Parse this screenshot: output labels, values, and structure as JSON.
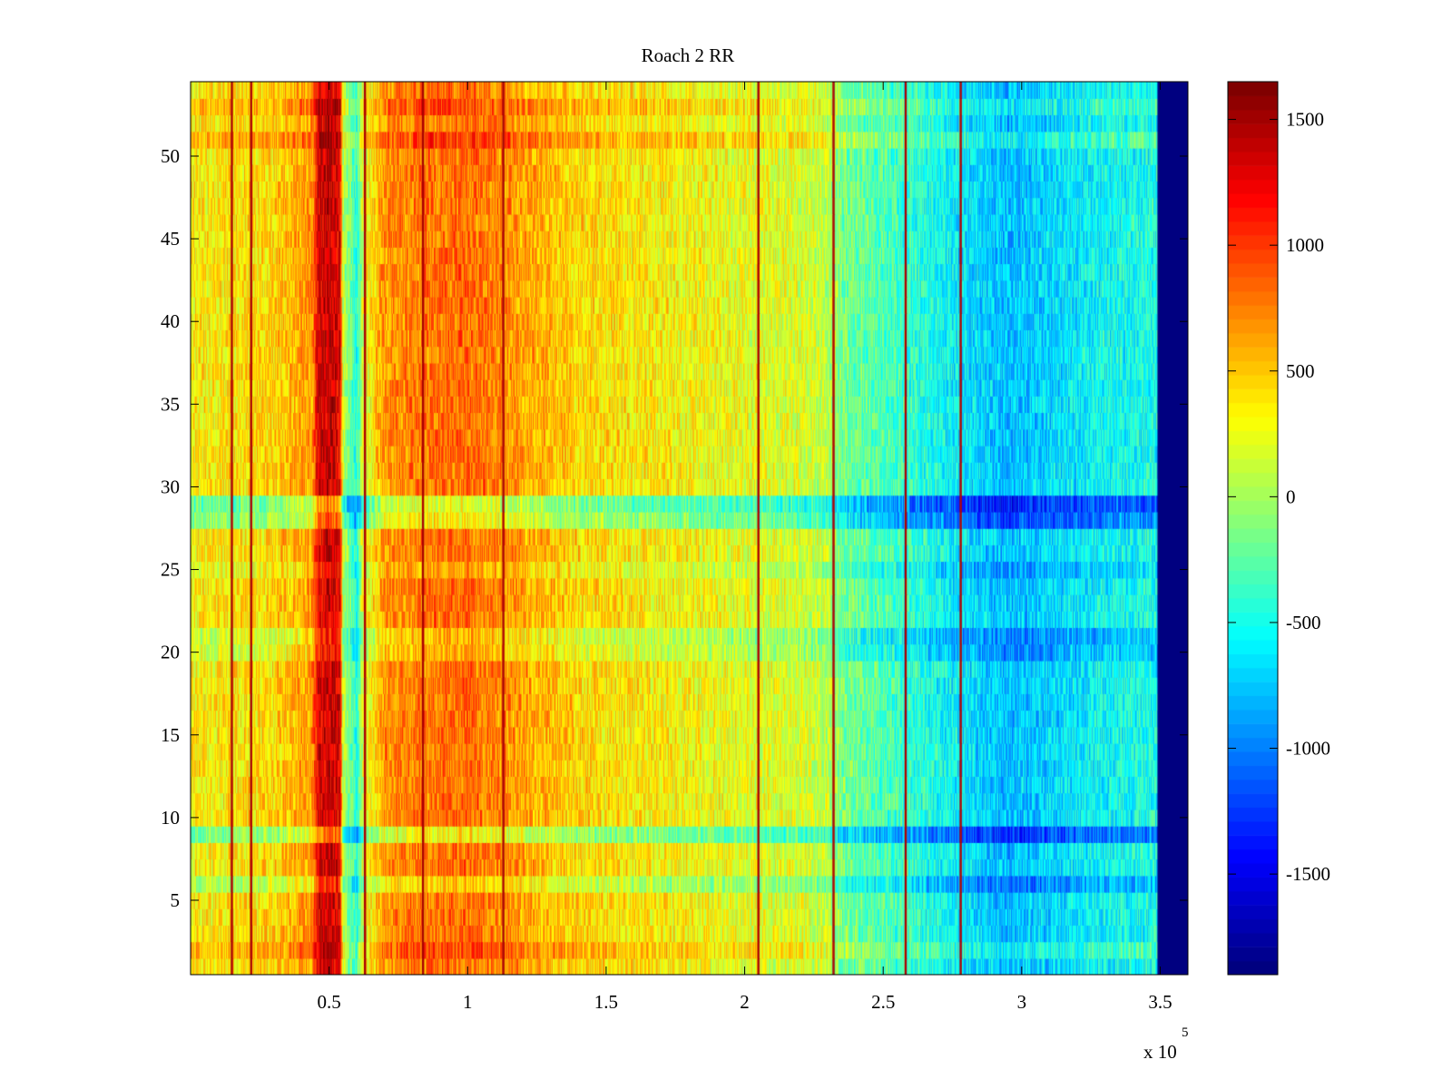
{
  "chart_data": {
    "type": "heatmap",
    "title": "Roach 2 RR",
    "xlabel": "",
    "ylabel": "",
    "x_exponent_label": "x 10",
    "x_exponent": "5",
    "xlim": [
      0,
      3.6
    ],
    "ylim": [
      0.5,
      54.5
    ],
    "xticks": [
      0.5,
      1,
      1.5,
      2,
      2.5,
      3,
      3.5
    ],
    "xtick_labels": [
      "0.5",
      "1",
      "1.5",
      "2",
      "2.5",
      "3",
      "3.5"
    ],
    "yticks": [
      5,
      10,
      15,
      20,
      25,
      30,
      35,
      40,
      45,
      50
    ],
    "ytick_labels": [
      "5",
      "10",
      "15",
      "20",
      "25",
      "30",
      "35",
      "40",
      "45",
      "50"
    ],
    "n_rows": 54,
    "data_x_end": 3.49,
    "colormap": "jet",
    "colorbar": {
      "clim": [
        -1900,
        1650
      ],
      "ticks": [
        1500,
        1000,
        500,
        0,
        -500,
        -1000,
        -1500
      ],
      "tick_labels": [
        "1500",
        "1000",
        "500",
        "0",
        "-500",
        "-1000",
        "-1500"
      ]
    },
    "column_profile": {
      "x": [
        0.0,
        0.15,
        0.3,
        0.44,
        0.46,
        0.5,
        0.54,
        0.55,
        0.6,
        0.62,
        0.7,
        0.85,
        1.0,
        1.15,
        1.4,
        1.7,
        2.0,
        2.2,
        2.3,
        2.35,
        2.6,
        2.8,
        2.95,
        3.1,
        3.3,
        3.49
      ],
      "mean": [
        350,
        400,
        450,
        700,
        1300,
        1400,
        1300,
        100,
        -450,
        150,
        700,
        800,
        850,
        700,
        450,
        350,
        250,
        200,
        100,
        -150,
        -400,
        -650,
        -800,
        -700,
        -550,
        -500
      ]
    },
    "dark_lines_x": [
      0.15,
      0.22,
      0.63,
      0.84,
      1.13,
      2.05,
      2.32,
      2.58,
      2.78
    ],
    "dark_line_value": 1500,
    "row_offsets": [
      {
        "row": 2,
        "offset": 150
      },
      {
        "row": 6,
        "offset": -300
      },
      {
        "row": 9,
        "offset": -500
      },
      {
        "row": 20,
        "offset": -200
      },
      {
        "row": 21,
        "offset": -250
      },
      {
        "row": 25,
        "offset": -150
      },
      {
        "row": 28,
        "offset": -450
      },
      {
        "row": 29,
        "offset": -600
      },
      {
        "row": 51,
        "offset": 200
      },
      {
        "row": 53,
        "offset": 150
      }
    ],
    "noise_amplitude": 330,
    "fill_value_right": -1900
  }
}
